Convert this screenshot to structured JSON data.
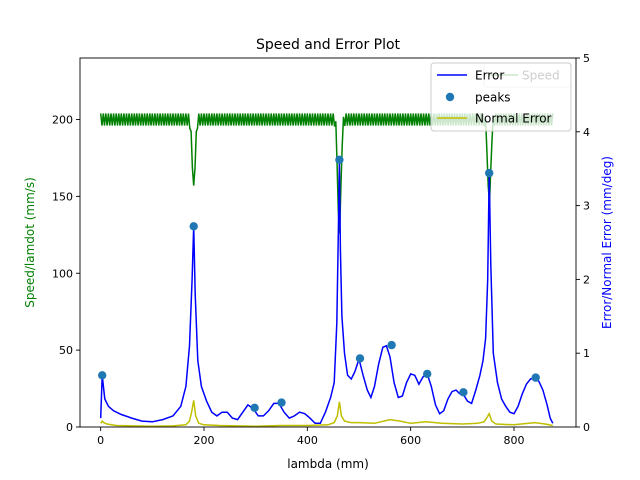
{
  "chart_data": {
    "type": "line",
    "title": "Speed and Error Plot",
    "xlabel": "lambda (mm)",
    "ylabel_left": "Speed/lamdot (mm/s)",
    "ylabel_right": "Error/Normal Error (mm/deg)",
    "xlim": [
      -40,
      920
    ],
    "ylim_left": [
      0,
      240
    ],
    "ylim_right": [
      0,
      5
    ],
    "x_ticks": [
      0,
      200,
      400,
      600,
      800
    ],
    "y_left_ticks": [
      0,
      50,
      100,
      150,
      200
    ],
    "y_right_ticks": [
      0,
      1,
      2,
      3,
      4,
      5
    ],
    "legend_position": "top-right",
    "colors": {
      "speed": "#008000",
      "error": "#0000ff",
      "normal_error": "#bfbf00",
      "peaks": "#1f77b4",
      "left_label": "#008000",
      "right_label": "#0000ff"
    },
    "series": [
      {
        "name": "Speed",
        "axis": "left",
        "style": "oscillating",
        "base": 200,
        "amplitude": 4,
        "x_range": [
          0,
          875
        ],
        "dips": [
          {
            "x": 180,
            "value": 157
          },
          {
            "x": 462,
            "value": 125
          },
          {
            "x": 752,
            "value": 145
          }
        ]
      },
      {
        "name": "Error",
        "axis": "right",
        "x": [
          0,
          3,
          8,
          15,
          25,
          40,
          60,
          80,
          100,
          120,
          140,
          155,
          165,
          172,
          177,
          180,
          183,
          188,
          195,
          205,
          215,
          225,
          235,
          245,
          255,
          265,
          275,
          285,
          295,
          305,
          315,
          325,
          335,
          345,
          355,
          365,
          375,
          385,
          395,
          405,
          415,
          425,
          435,
          445,
          452,
          457,
          460,
          462,
          464,
          467,
          472,
          478,
          485,
          492,
          500,
          508,
          516,
          523,
          530,
          538,
          546,
          553,
          560,
          568,
          576,
          584,
          592,
          600,
          608,
          616,
          624,
          632,
          640,
          648,
          656,
          664,
          672,
          680,
          688,
          695,
          702,
          710,
          718,
          726,
          734,
          740,
          745,
          749,
          752,
          755,
          760,
          768,
          776,
          784,
          792,
          800,
          808,
          816,
          824,
          832,
          840,
          848,
          856,
          864,
          870,
          875
        ],
        "y": [
          0.12,
          0.7,
          0.38,
          0.28,
          0.22,
          0.17,
          0.12,
          0.08,
          0.07,
          0.1,
          0.15,
          0.28,
          0.55,
          1.1,
          2.0,
          2.72,
          1.8,
          0.9,
          0.55,
          0.35,
          0.2,
          0.15,
          0.2,
          0.2,
          0.12,
          0.1,
          0.2,
          0.3,
          0.25,
          0.15,
          0.15,
          0.22,
          0.32,
          0.32,
          0.2,
          0.12,
          0.15,
          0.2,
          0.18,
          0.12,
          0.05,
          0.05,
          0.2,
          0.4,
          0.6,
          1.4,
          2.6,
          3.6,
          2.4,
          1.5,
          1.0,
          0.7,
          0.65,
          0.75,
          0.92,
          0.7,
          0.5,
          0.4,
          0.55,
          0.85,
          1.08,
          1.1,
          0.95,
          0.6,
          0.4,
          0.42,
          0.6,
          0.72,
          0.7,
          0.58,
          0.68,
          0.72,
          0.55,
          0.3,
          0.18,
          0.22,
          0.38,
          0.48,
          0.5,
          0.45,
          0.44,
          0.35,
          0.32,
          0.5,
          0.7,
          0.9,
          1.2,
          2.0,
          3.44,
          2.2,
          1.0,
          0.6,
          0.38,
          0.28,
          0.2,
          0.18,
          0.28,
          0.45,
          0.58,
          0.65,
          0.66,
          0.62,
          0.5,
          0.3,
          0.12,
          0.05
        ]
      },
      {
        "name": "peaks",
        "axis": "right",
        "type": "scatter",
        "x": [
          3,
          180,
          298,
          350,
          462,
          502,
          563,
          632,
          702,
          752,
          842
        ],
        "y": [
          0.7,
          2.72,
          0.26,
          0.33,
          3.62,
          0.93,
          1.11,
          0.72,
          0.47,
          3.44,
          0.67
        ]
      },
      {
        "name": "Normal Error",
        "axis": "right",
        "x": [
          0,
          3,
          6,
          12,
          30,
          60,
          100,
          140,
          165,
          172,
          176,
          180,
          184,
          190,
          200,
          230,
          300,
          350,
          400,
          440,
          452,
          458,
          462,
          466,
          472,
          485,
          500,
          530,
          560,
          580,
          600,
          630,
          660,
          700,
          730,
          742,
          747,
          752,
          757,
          765,
          800,
          840,
          860,
          875
        ],
        "y": [
          0.05,
          0.08,
          0.06,
          0.04,
          0.02,
          0.015,
          0.01,
          0.015,
          0.03,
          0.08,
          0.2,
          0.36,
          0.15,
          0.05,
          0.03,
          0.02,
          0.01,
          0.02,
          0.02,
          0.03,
          0.06,
          0.15,
          0.34,
          0.15,
          0.08,
          0.06,
          0.06,
          0.05,
          0.1,
          0.08,
          0.05,
          0.07,
          0.05,
          0.04,
          0.05,
          0.07,
          0.12,
          0.18,
          0.08,
          0.04,
          0.03,
          0.06,
          0.04,
          0.02
        ]
      }
    ]
  }
}
